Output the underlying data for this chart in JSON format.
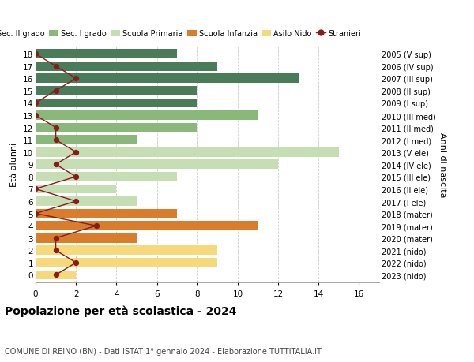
{
  "ages": [
    18,
    17,
    16,
    15,
    14,
    13,
    12,
    11,
    10,
    9,
    8,
    7,
    6,
    5,
    4,
    3,
    2,
    1,
    0
  ],
  "birth_years": [
    "2005 (V sup)",
    "2006 (IV sup)",
    "2007 (III sup)",
    "2008 (II sup)",
    "2009 (I sup)",
    "2010 (III med)",
    "2011 (II med)",
    "2012 (I med)",
    "2013 (V ele)",
    "2014 (IV ele)",
    "2015 (III ele)",
    "2016 (II ele)",
    "2017 (I ele)",
    "2018 (mater)",
    "2019 (mater)",
    "2020 (mater)",
    "2021 (nido)",
    "2022 (nido)",
    "2023 (nido)"
  ],
  "bar_values": [
    7,
    9,
    13,
    8,
    8,
    11,
    8,
    5,
    15,
    12,
    7,
    4,
    5,
    7,
    11,
    5,
    9,
    9,
    2
  ],
  "bar_colors": [
    "#4a7c59",
    "#4a7c59",
    "#4a7c59",
    "#4a7c59",
    "#4a7c59",
    "#8ab87a",
    "#8ab87a",
    "#8ab87a",
    "#c5deb3",
    "#c5deb3",
    "#c5deb3",
    "#c5deb3",
    "#c5deb3",
    "#d97c2b",
    "#d97c2b",
    "#d97c2b",
    "#f5d97a",
    "#f5d97a",
    "#f5d97a"
  ],
  "stranieri_values": [
    0,
    1,
    2,
    1,
    0,
    0,
    1,
    1,
    2,
    1,
    2,
    0,
    2,
    0,
    3,
    1,
    1,
    2,
    1
  ],
  "xlim": [
    0,
    17
  ],
  "xticks": [
    0,
    2,
    4,
    6,
    8,
    10,
    12,
    14,
    16
  ],
  "ylabel_left": "Età alunni",
  "ylabel_right": "Anni di nascita",
  "title": "Popolazione per età scolastica - 2024",
  "subtitle": "COMUNE DI REINO (BN) - Dati ISTAT 1° gennaio 2024 - Elaborazione TUTTITALIA.IT",
  "legend_items": [
    {
      "label": "Sec. II grado",
      "color": "#4a7c59"
    },
    {
      "label": "Sec. I grado",
      "color": "#8ab87a"
    },
    {
      "label": "Scuola Primaria",
      "color": "#c5deb3"
    },
    {
      "label": "Scuola Infanzia",
      "color": "#d97c2b"
    },
    {
      "label": "Asilo Nido",
      "color": "#f5d97a"
    },
    {
      "label": "Stranieri",
      "color": "#8b1a1a"
    }
  ],
  "bg_color": "#ffffff",
  "grid_color": "#cccccc",
  "stranieri_color": "#8b1a1a",
  "bar_height": 0.75
}
